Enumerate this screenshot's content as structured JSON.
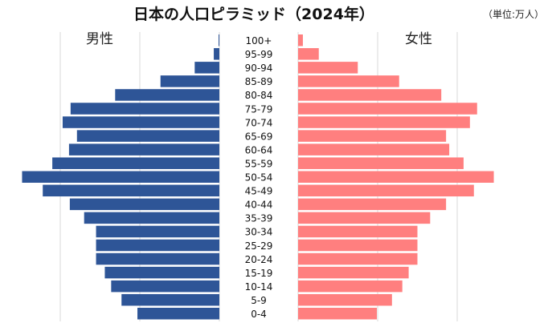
{
  "chart_data": {
    "type": "bar",
    "orientation": "horizontal-population-pyramid",
    "title": "日本の人口ピラミッド（2024年）",
    "unit_label": "（単位:万人）",
    "categories": [
      "100+",
      "95-99",
      "90-94",
      "85-89",
      "80-84",
      "75-79",
      "70-74",
      "65-69",
      "60-64",
      "55-59",
      "50-54",
      "45-49",
      "40-44",
      "35-39",
      "30-34",
      "25-29",
      "20-24",
      "15-19",
      "10-14",
      "5-9",
      "0-4"
    ],
    "series": [
      {
        "name": "男性",
        "color": "#2e5597",
        "values": [
          1,
          7,
          31,
          74,
          131,
          187,
          197,
          179,
          189,
          210,
          248,
          222,
          188,
          170,
          155,
          155,
          155,
          144,
          136,
          123,
          103
        ]
      },
      {
        "name": "女性",
        "color": "#ff7f7f",
        "values": [
          6,
          26,
          75,
          127,
          180,
          225,
          216,
          186,
          190,
          208,
          246,
          221,
          186,
          166,
          150,
          150,
          150,
          139,
          131,
          118,
          99
        ]
      }
    ],
    "xlim": [
      0,
      250
    ],
    "grid": true,
    "legend": "inline labels above each side"
  }
}
